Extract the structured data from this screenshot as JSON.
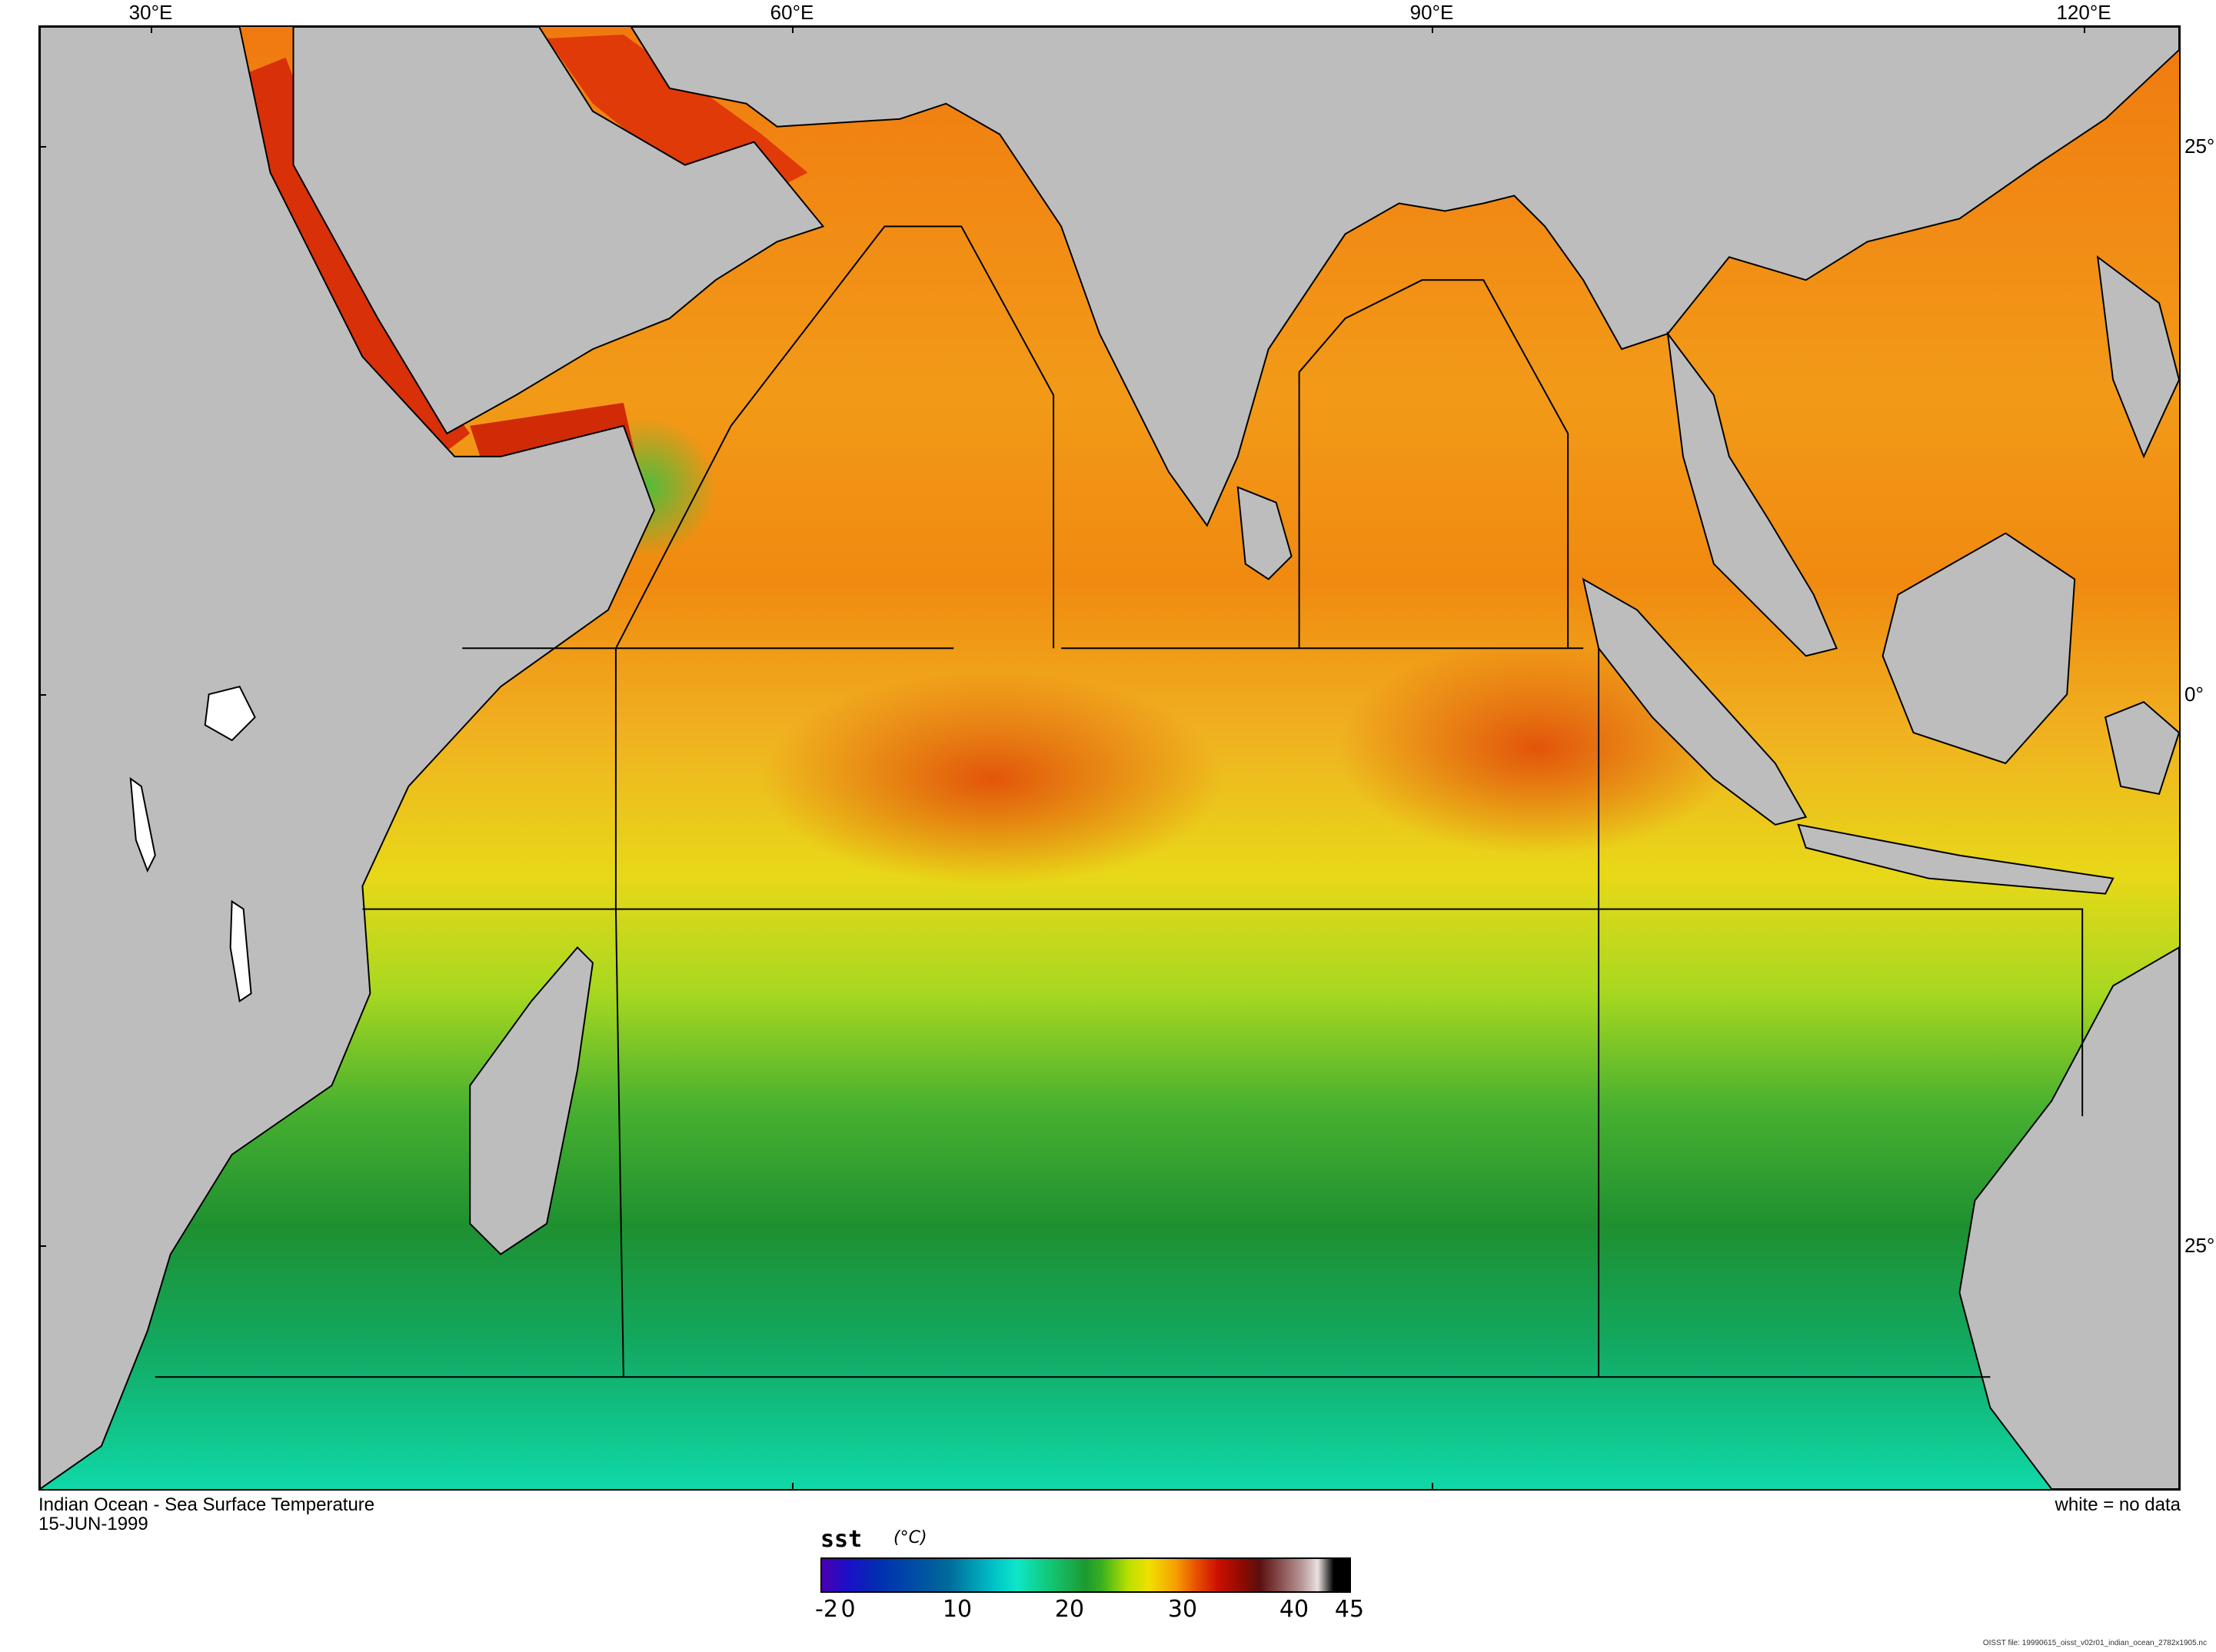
{
  "map": {
    "title": "Indian Ocean - Sea Surface Temperature",
    "date": "15-JUN-1999",
    "no_data_note": "white = no data",
    "lon_labels": [
      {
        "id": "lon-30",
        "text": "30°E"
      },
      {
        "id": "lon-60",
        "text": "60°E"
      },
      {
        "id": "lon-90",
        "text": "90°E"
      },
      {
        "id": "lon-120",
        "text": "120°E"
      }
    ],
    "lat_labels": [
      {
        "id": "lat-25n",
        "text": "25°"
      },
      {
        "id": "lat-0",
        "text": "0°"
      },
      {
        "id": "lat-25s",
        "text": "25°"
      }
    ],
    "colors": {
      "land": "#bdbdbd",
      "no_data": "#ffffff",
      "coastline": "#000000"
    }
  },
  "colorbar": {
    "variable": "sst",
    "units": "(°C)",
    "min": -2,
    "max": 45,
    "tick_labels": [
      "-2",
      "0",
      "10",
      "20",
      "30",
      "40",
      "45"
    ]
  },
  "footer": {
    "file": "OISST file: 19990615_oisst_v02r01_indian_ocean_2782x1905.nc"
  }
}
